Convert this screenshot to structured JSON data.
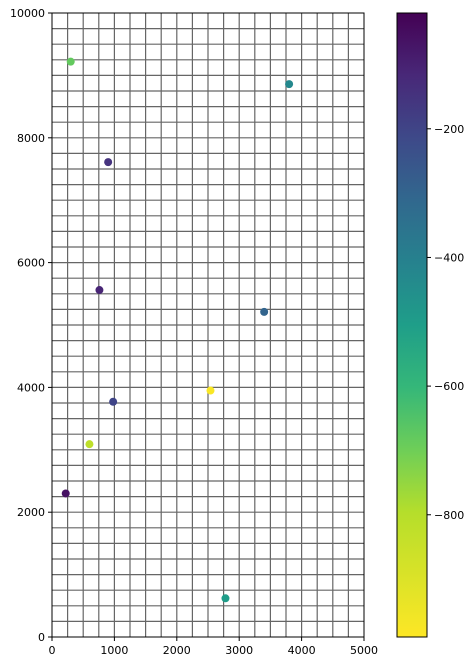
{
  "chart_data": {
    "type": "scatter",
    "title": "",
    "xlabel": "",
    "ylabel": "",
    "xlim": [
      0,
      5000
    ],
    "ylim": [
      0,
      10000
    ],
    "grid": true,
    "x_ticks": [
      0,
      1000,
      2000,
      3000,
      4000,
      5000
    ],
    "x_tick_labels": [
      "0",
      "1000",
      "2000",
      "3000",
      "4000",
      "5000"
    ],
    "y_ticks": [
      0,
      2000,
      4000,
      6000,
      8000,
      10000
    ],
    "y_tick_labels": [
      "0",
      "2000",
      "4000",
      "6000",
      "8000",
      "10000"
    ],
    "points": [
      {
        "x": 300,
        "y": 9220,
        "value": -680
      },
      {
        "x": 3800,
        "y": 8860,
        "value": -430
      },
      {
        "x": 900,
        "y": 7610,
        "value": -150
      },
      {
        "x": 760,
        "y": 5560,
        "value": -110
      },
      {
        "x": 3400,
        "y": 5210,
        "value": -300
      },
      {
        "x": 2540,
        "y": 3950,
        "value": -980
      },
      {
        "x": 980,
        "y": 3770,
        "value": -200
      },
      {
        "x": 600,
        "y": 3090,
        "value": -820
      },
      {
        "x": 220,
        "y": 2300,
        "value": -60
      },
      {
        "x": 2780,
        "y": 620,
        "value": -500
      }
    ],
    "colorbar": {
      "colormap": "viridis",
      "reversed": true,
      "range": [
        -990,
        -20
      ],
      "ticks": [
        -200,
        -400,
        -600,
        -800
      ],
      "tick_labels": [
        "−200",
        "−400",
        "−600",
        "−800"
      ]
    }
  }
}
